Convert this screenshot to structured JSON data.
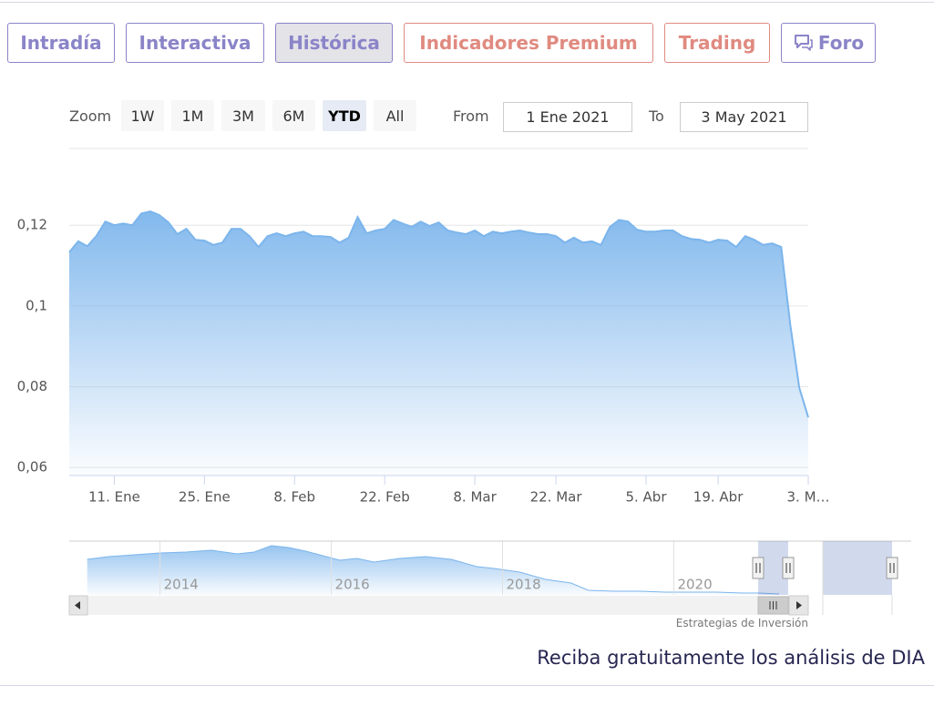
{
  "tabs": [
    "Intradía",
    "Interactiva",
    "Histórica",
    "Indicadores Premium",
    "Trading",
    "Foro"
  ],
  "range_selector": {
    "zoom_label": "Zoom",
    "buttons": [
      "1W",
      "1M",
      "3M",
      "6M",
      "YTD",
      "All"
    ],
    "from_label": "From",
    "from": "1 Ene 2021",
    "to_label": "To",
    "to": "3 May 2021"
  },
  "chart_data": [
    {
      "type": "area",
      "color": "#7cb5ec",
      "grid": true,
      "values": [
        0.1133,
        0.116,
        0.1148,
        0.1173,
        0.1209,
        0.12,
        0.1204,
        0.12,
        0.1229,
        0.1234,
        0.1225,
        0.1207,
        0.1178,
        0.1191,
        0.1164,
        0.1162,
        0.1151,
        0.1157,
        0.1191,
        0.1191,
        0.1173,
        0.1146,
        0.1173,
        0.118,
        0.1173,
        0.118,
        0.1184,
        0.1173,
        0.1173,
        0.1171,
        0.1157,
        0.1169,
        0.122,
        0.118,
        0.1187,
        0.1191,
        0.1213,
        0.1204,
        0.1196,
        0.1209,
        0.1198,
        0.1207,
        0.1187,
        0.1182,
        0.1178,
        0.1187,
        0.1173,
        0.1184,
        0.118,
        0.1184,
        0.1187,
        0.1182,
        0.1178,
        0.1178,
        0.1173,
        0.1157,
        0.1169,
        0.1157,
        0.116,
        0.1151,
        0.1196,
        0.1213,
        0.1209,
        0.1189,
        0.1184,
        0.1184,
        0.1187,
        0.1187,
        0.1173,
        0.1166,
        0.1164,
        0.1157,
        0.1164,
        0.1162,
        0.1146,
        0.1173,
        0.1164,
        0.1151,
        0.1155,
        0.1146,
        0.0955,
        0.0798,
        0.0724
      ],
      "xlim": [
        0,
        82
      ],
      "xticks": [
        {
          "value": 5,
          "label": "11. Ene"
        },
        {
          "value": 15,
          "label": "25. Ene"
        },
        {
          "value": 25,
          "label": "8. Feb"
        },
        {
          "value": 35,
          "label": "22. Feb"
        },
        {
          "value": 45,
          "label": "8. Mar"
        },
        {
          "value": 54,
          "label": "22. Mar"
        },
        {
          "value": 64,
          "label": "5. Abr"
        },
        {
          "value": 72,
          "label": "19. Abr"
        },
        {
          "value": 82,
          "label": "3. M…"
        }
      ],
      "ylim": [
        0.058,
        0.139
      ],
      "yticks": [
        {
          "value": 0.06,
          "label": "0,06"
        },
        {
          "value": 0.08,
          "label": "0,08"
        },
        {
          "value": 0.1,
          "label": "0,1"
        },
        {
          "value": 0.12,
          "label": "0,12"
        }
      ]
    },
    {
      "type": "area",
      "color": "#7cb5ec",
      "grid": true,
      "x": [
        2013.15,
        2013.4,
        2013.7,
        2014.0,
        2014.3,
        2014.6,
        2014.9,
        2015.1,
        2015.3,
        2015.5,
        2015.7,
        2015.9,
        2016.1,
        2016.3,
        2016.5,
        2016.8,
        2017.1,
        2017.4,
        2017.7,
        2017.9,
        2018.2,
        2018.5,
        2018.8,
        2019.0,
        2019.3,
        2019.6,
        2019.9,
        2020.2,
        2020.5,
        2020.8,
        2021.0,
        2021.23
      ],
      "values": [
        4.63,
        4.98,
        5.22,
        5.46,
        5.58,
        5.81,
        5.34,
        5.58,
        6.41,
        6.17,
        5.69,
        5.1,
        4.51,
        4.75,
        4.27,
        4.75,
        4.98,
        4.63,
        3.68,
        3.44,
        2.97,
        2.02,
        1.54,
        0.59,
        0.47,
        0.47,
        0.36,
        0.36,
        0.36,
        0.24,
        0.24,
        0.12
      ],
      "xlim": [
        2012.94,
        2021.57
      ],
      "xticks": [
        2014,
        2016,
        2018,
        2020
      ],
      "ylim": [
        0,
        7
      ]
    }
  ],
  "credits": "Estrategias de Inversión",
  "footer": "Reciba gratuitamente los análisis de DIA"
}
